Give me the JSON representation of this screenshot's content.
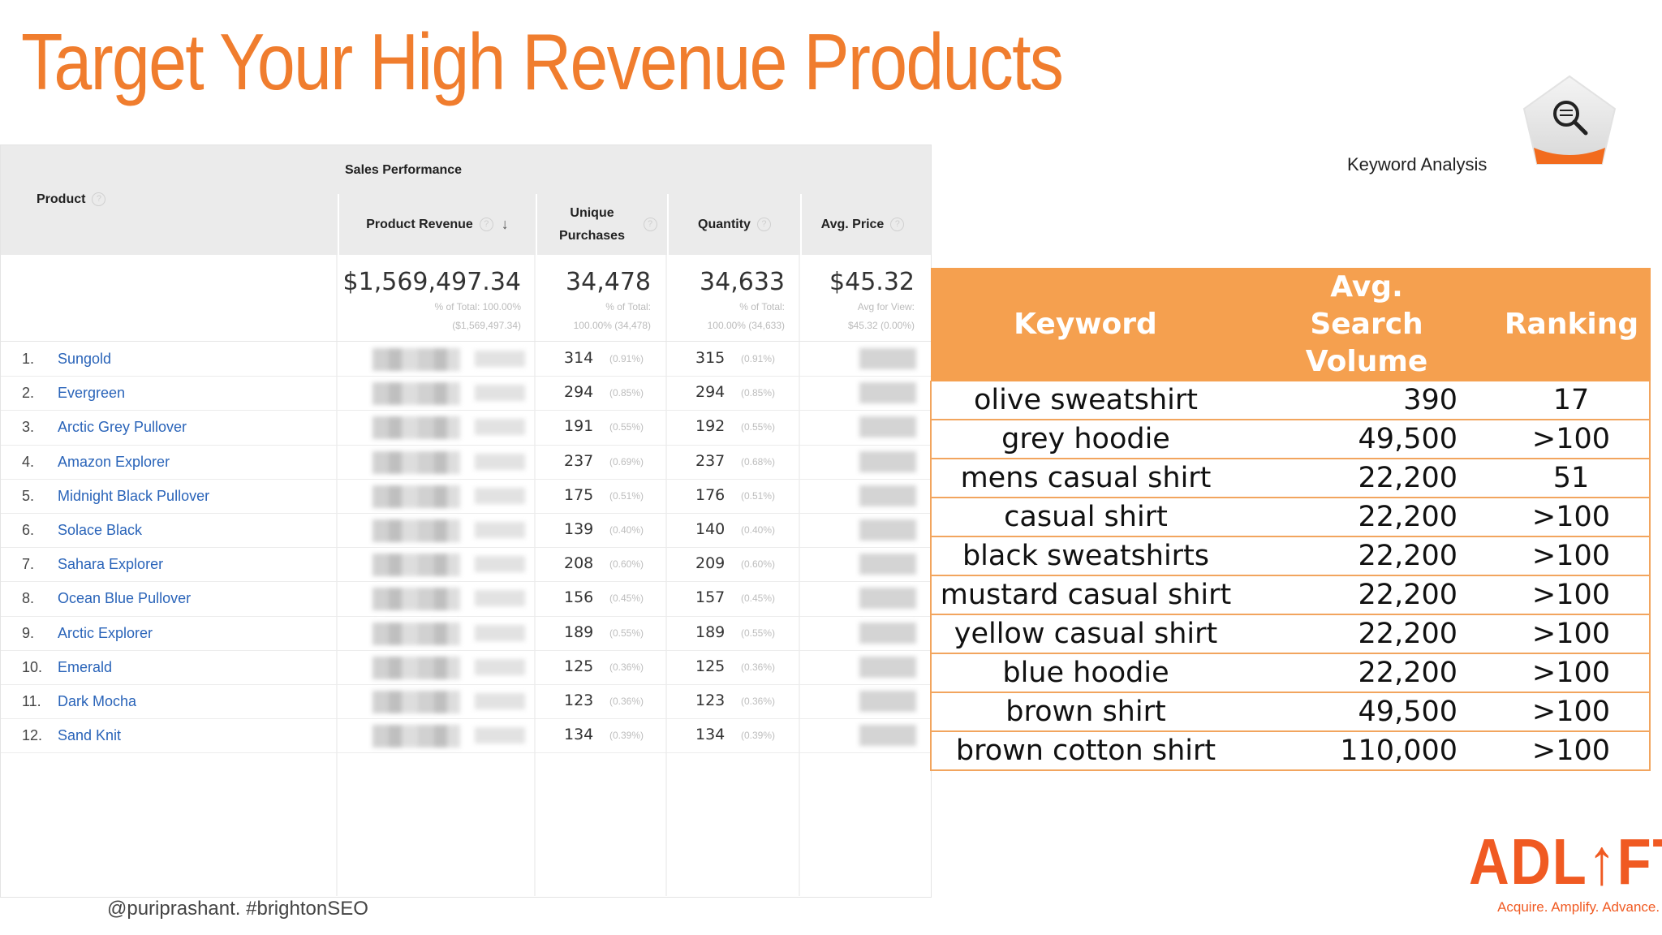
{
  "slide": {
    "title": "Target Your High Revenue Products",
    "handle": "@puriprashant. #brightonSEO"
  },
  "report": {
    "product_header": "Product",
    "group_header": "Sales Performance",
    "columns": [
      "Product Revenue",
      "Unique Purchases",
      "Quantity",
      "Avg. Price"
    ],
    "help_glyph": "?",
    "sort_glyph": "↓",
    "totals": {
      "revenue": "$1,569,497.34",
      "revenue_note1": "% of Total: 100.00%",
      "revenue_note2": "($1,569,497.34)",
      "purchases": "34,478",
      "purchases_note1": "% of Total:",
      "purchases_note2": "100.00% (34,478)",
      "quantity": "34,633",
      "quantity_note1": "% of Total:",
      "quantity_note2": "100.00% (34,633)",
      "price": "$45.32",
      "price_note1": "Avg for View:",
      "price_note2": "$45.32 (0.00%)"
    },
    "rows": [
      {
        "n": "1.",
        "name": "Sungold",
        "up": "314",
        "upp": "(0.91%)",
        "q": "315",
        "qp": "(0.91%)"
      },
      {
        "n": "2.",
        "name": "Evergreen",
        "up": "294",
        "upp": "(0.85%)",
        "q": "294",
        "qp": "(0.85%)"
      },
      {
        "n": "3.",
        "name": "Arctic Grey Pullover",
        "up": "191",
        "upp": "(0.55%)",
        "q": "192",
        "qp": "(0.55%)"
      },
      {
        "n": "4.",
        "name": "Amazon Explorer",
        "up": "237",
        "upp": "(0.69%)",
        "q": "237",
        "qp": "(0.68%)"
      },
      {
        "n": "5.",
        "name": "Midnight Black Pullover",
        "up": "175",
        "upp": "(0.51%)",
        "q": "176",
        "qp": "(0.51%)"
      },
      {
        "n": "6.",
        "name": "Solace Black",
        "up": "139",
        "upp": "(0.40%)",
        "q": "140",
        "qp": "(0.40%)"
      },
      {
        "n": "7.",
        "name": "Sahara Explorer",
        "up": "208",
        "upp": "(0.60%)",
        "q": "209",
        "qp": "(0.60%)"
      },
      {
        "n": "8.",
        "name": "Ocean Blue Pullover",
        "up": "156",
        "upp": "(0.45%)",
        "q": "157",
        "qp": "(0.45%)"
      },
      {
        "n": "9.",
        "name": "Arctic Explorer",
        "up": "189",
        "upp": "(0.55%)",
        "q": "189",
        "qp": "(0.55%)"
      },
      {
        "n": "10.",
        "name": "Emerald",
        "up": "125",
        "upp": "(0.36%)",
        "q": "125",
        "qp": "(0.36%)"
      },
      {
        "n": "11.",
        "name": "Dark Mocha",
        "up": "123",
        "upp": "(0.36%)",
        "q": "123",
        "qp": "(0.36%)"
      },
      {
        "n": "12.",
        "name": "Sand Knit",
        "up": "134",
        "upp": "(0.39%)",
        "q": "134",
        "qp": "(0.39%)"
      }
    ]
  },
  "keywords": {
    "card_label": "Keyword Analysis",
    "icon": "magnifier-icon",
    "headers": [
      "Keyword",
      "Avg. Search Volume",
      "Ranking"
    ],
    "rows": [
      {
        "keyword": "olive sweatshirt",
        "volume": "390",
        "ranking": "17"
      },
      {
        "keyword": "grey hoodie",
        "volume": "49,500",
        "ranking": ">100"
      },
      {
        "keyword": "mens casual shirt",
        "volume": "22,200",
        "ranking": "51"
      },
      {
        "keyword": "casual shirt",
        "volume": "22,200",
        "ranking": ">100"
      },
      {
        "keyword": "black sweatshirts",
        "volume": "22,200",
        "ranking": ">100"
      },
      {
        "keyword": "mustard casual shirt",
        "volume": "22,200",
        "ranking": ">100"
      },
      {
        "keyword": "yellow casual shirt",
        "volume": "22,200",
        "ranking": ">100"
      },
      {
        "keyword": "blue hoodie",
        "volume": "22,200",
        "ranking": ">100"
      },
      {
        "keyword": "brown shirt",
        "volume": "49,500",
        "ranking": ">100"
      },
      {
        "keyword": "brown cotton shirt",
        "volume": "110,000",
        "ranking": ">100"
      }
    ]
  },
  "logo": {
    "word_left": "ADL",
    "word_right": "FT",
    "tagline": "Acquire. Amplify. Advance."
  },
  "colors": {
    "title": "#f07d2e",
    "table_header": "#f5a04f",
    "link": "#2a64b9",
    "logo": "#f05a22"
  }
}
